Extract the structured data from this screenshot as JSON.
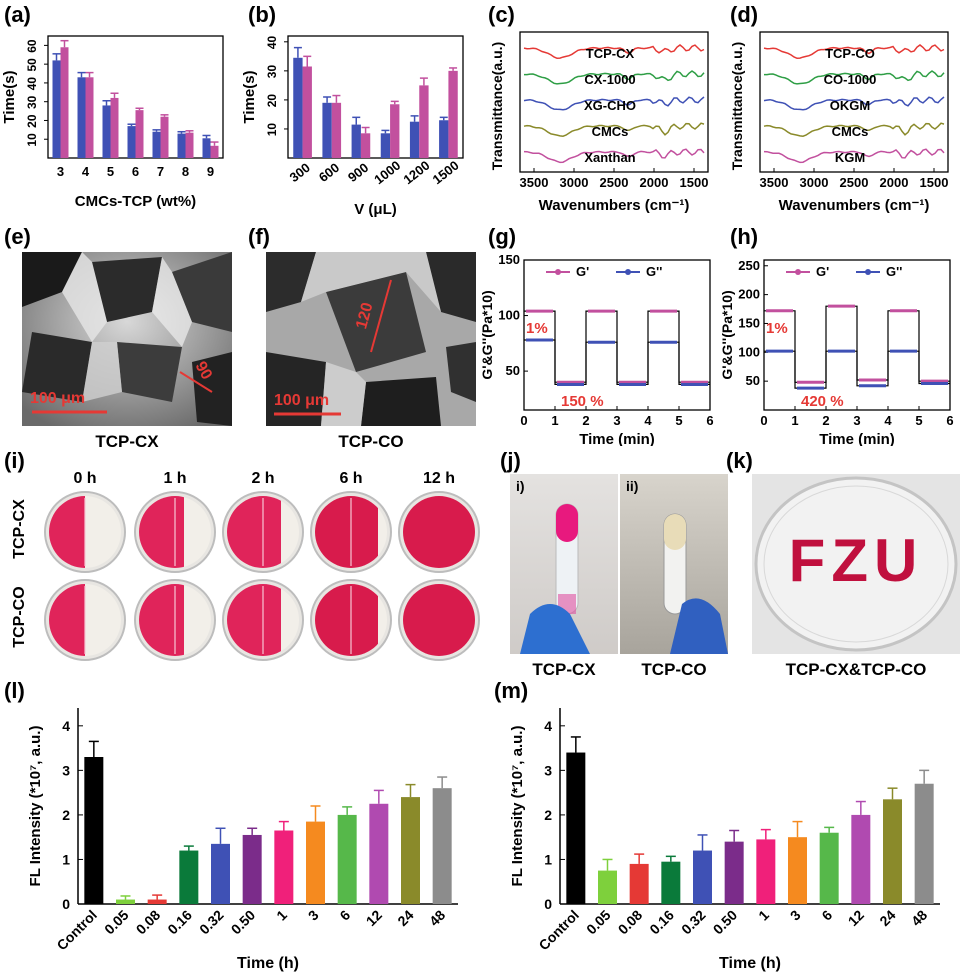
{
  "figure": {
    "panel_labels": [
      "(a)",
      "(b)",
      "(c)",
      "(d)",
      "(e)",
      "(f)",
      "(g)",
      "(h)",
      "(i)",
      "(j)",
      "(k)",
      "(l)",
      "(m)"
    ]
  },
  "chart_data": [
    {
      "panel": "(a)",
      "type": "bar",
      "categories": [
        "3",
        "4",
        "5",
        "6",
        "7",
        "8",
        "9"
      ],
      "series": [
        {
          "color": "#3f51b5",
          "values": [
            52,
            43,
            28,
            17,
            14,
            13,
            10.5
          ],
          "errors": [
            3.5,
            2.5,
            2.5,
            1,
            1,
            1,
            1.5
          ]
        },
        {
          "color": "#c2509e",
          "values": [
            59,
            43,
            32,
            25.5,
            22,
            13.5,
            6.5
          ],
          "errors": [
            3.5,
            2.5,
            2.5,
            1,
            1,
            1,
            2
          ]
        }
      ],
      "xlabel": "CMCs-TCP (wt%)",
      "ylabel": "Time(s)",
      "ylim": [
        0,
        65
      ],
      "yticks": [
        10,
        20,
        30,
        40,
        50,
        60
      ]
    },
    {
      "panel": "(b)",
      "type": "bar",
      "categories": [
        "300",
        "600",
        "900",
        "1000",
        "1200",
        "1500"
      ],
      "series": [
        {
          "color": "#3f51b5",
          "values": [
            34.5,
            19,
            11.5,
            8.5,
            12.5,
            13
          ],
          "errors": [
            3.5,
            2,
            2.5,
            1,
            2,
            1
          ]
        },
        {
          "color": "#c2509e",
          "values": [
            31.5,
            19,
            8.5,
            18.5,
            25,
            30
          ],
          "errors": [
            3.5,
            2.5,
            2,
            1,
            2.5,
            1
          ]
        }
      ],
      "xlabel": "V (μL)",
      "ylabel": "Time(s)",
      "ylim": [
        0,
        42
      ],
      "yticks": [
        10,
        20,
        30,
        40
      ]
    },
    {
      "panel": "(c)",
      "type": "line",
      "xlabel": "Wavenumbers (cm⁻¹)",
      "ylabel": "Transmittance(a.u.)",
      "xticks": [
        "3500",
        "3000",
        "2500",
        "2000",
        "1500"
      ],
      "series": [
        {
          "name": "TCP-CX",
          "color": "#e53935"
        },
        {
          "name": "CX-1000",
          "color": "#2e9e45"
        },
        {
          "name": "XG-CHO",
          "color": "#3f51b5"
        },
        {
          "name": "CMCs",
          "color": "#8a8a2a"
        },
        {
          "name": "Xanthan",
          "color": "#c2509e"
        }
      ]
    },
    {
      "panel": "(d)",
      "type": "line",
      "xlabel": "Wavenumbers (cm⁻¹)",
      "ylabel": "Transmittance(a.u.)",
      "xticks": [
        "3500",
        "3000",
        "2500",
        "2000",
        "1500"
      ],
      "series": [
        {
          "name": "TCP-CO",
          "color": "#e53935"
        },
        {
          "name": "CO-1000",
          "color": "#2e9e45"
        },
        {
          "name": "OKGM",
          "color": "#3f51b5"
        },
        {
          "name": "CMCs",
          "color": "#8a8a2a"
        },
        {
          "name": "KGM",
          "color": "#c2509e"
        }
      ]
    },
    {
      "panel": "(g)",
      "type": "line",
      "xlabel": "Time (min)",
      "ylabel": "G'&G''(Pa*10)",
      "xlim": [
        0,
        6
      ],
      "xticks": [
        "0",
        "1",
        "2",
        "3",
        "4",
        "5",
        "6"
      ],
      "ylim": [
        15,
        150
      ],
      "yticks": [
        "50",
        "100",
        "150"
      ],
      "legend": [
        "G'",
        "G''"
      ],
      "annotations": [
        "1%",
        "150 %"
      ],
      "series": [
        {
          "name": "G'",
          "color": "#c2509e",
          "levels": [
            104,
            40,
            104,
            40,
            104,
            40
          ]
        },
        {
          "name": "G''",
          "color": "#3f51b5",
          "levels": [
            78,
            38,
            76,
            38,
            76,
            38
          ]
        }
      ]
    },
    {
      "panel": "(h)",
      "type": "line",
      "xlabel": "Time (min)",
      "ylabel": "G'&G''(Pa*10)",
      "xlim": [
        0,
        6
      ],
      "xticks": [
        "0",
        "1",
        "2",
        "3",
        "4",
        "5",
        "6"
      ],
      "ylim": [
        0,
        260
      ],
      "yticks": [
        "50",
        "100",
        "150",
        "200",
        "250"
      ],
      "legend": [
        "G'",
        "G''"
      ],
      "annotations": [
        "1%",
        "420 %"
      ],
      "series": [
        {
          "name": "G'",
          "color": "#c2509e",
          "levels": [
            172,
            48,
            180,
            52,
            172,
            50
          ]
        },
        {
          "name": "G''",
          "color": "#3f51b5",
          "levels": [
            102,
            38,
            102,
            42,
            102,
            46
          ]
        }
      ]
    },
    {
      "panel": "(l)",
      "type": "bar",
      "categories": [
        "Control",
        "0.05",
        "0.08",
        "0.16",
        "0.32",
        "0.50",
        "1",
        "3",
        "6",
        "12",
        "24",
        "48"
      ],
      "values": [
        3.3,
        0.1,
        0.1,
        1.2,
        1.35,
        1.55,
        1.65,
        1.85,
        2.0,
        2.25,
        2.4,
        2.6
      ],
      "errors": [
        0.35,
        0.08,
        0.1,
        0.1,
        0.35,
        0.15,
        0.2,
        0.35,
        0.18,
        0.3,
        0.28,
        0.25
      ],
      "colors": [
        "#000000",
        "#7ed03c",
        "#e53935",
        "#0a7a3a",
        "#3f51b5",
        "#7b2c8a",
        "#f0207a",
        "#f58a1f",
        "#56b84a",
        "#b04ab0",
        "#8a8a2a",
        "#8c8c8c"
      ],
      "xlabel": "Time (h)",
      "ylabel": "FL Intensity (*10⁷, a.u.)",
      "ylim": [
        0,
        4.4
      ],
      "yticks": [
        "0",
        "1",
        "2",
        "3",
        "4"
      ]
    },
    {
      "panel": "(m)",
      "type": "bar",
      "categories": [
        "Control",
        "0.05",
        "0.08",
        "0.16",
        "0.32",
        "0.50",
        "1",
        "3",
        "6",
        "12",
        "24",
        "48"
      ],
      "values": [
        3.4,
        0.75,
        0.9,
        0.95,
        1.2,
        1.4,
        1.45,
        1.5,
        1.6,
        2.0,
        2.35,
        2.7
      ],
      "errors": [
        0.35,
        0.25,
        0.22,
        0.12,
        0.35,
        0.25,
        0.22,
        0.35,
        0.12,
        0.3,
        0.25,
        0.3
      ],
      "colors": [
        "#000000",
        "#7ed03c",
        "#e53935",
        "#0a7a3a",
        "#3f51b5",
        "#7b2c8a",
        "#f0207a",
        "#f58a1f",
        "#56b84a",
        "#b04ab0",
        "#8a8a2a",
        "#8c8c8c"
      ],
      "xlabel": "Time (h)",
      "ylabel": "FL Intensity (*10⁷, a.u.)",
      "ylim": [
        0,
        4.4
      ],
      "yticks": [
        "0",
        "1",
        "2",
        "3",
        "4"
      ]
    }
  ],
  "sem": {
    "e": {
      "caption": "TCP-CX",
      "scale": "100 μm",
      "measure": "90"
    },
    "f": {
      "caption": "TCP-CO",
      "scale": "100 μm",
      "measure": "120"
    }
  },
  "healing": {
    "times": [
      "0 h",
      "1 h",
      "2 h",
      "6 h",
      "12 h"
    ],
    "rows": [
      "TCP-CX",
      "TCP-CO"
    ]
  },
  "photos": {
    "j": {
      "labels": [
        "i)",
        "ii)"
      ],
      "captions": [
        "TCP-CX",
        "TCP-CO"
      ]
    },
    "k": {
      "text": "FZU",
      "caption": "TCP-CX&TCP-CO"
    }
  }
}
